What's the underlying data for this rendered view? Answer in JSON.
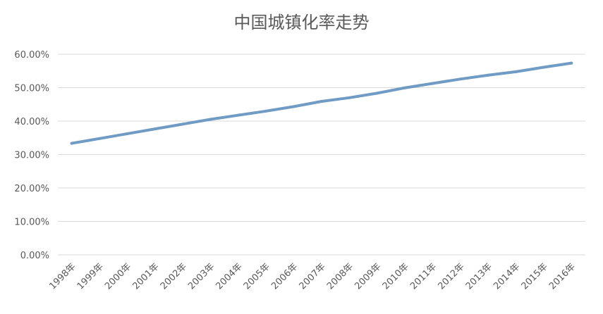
{
  "chart_data": {
    "type": "line",
    "title": "中国城镇化率走势",
    "xlabel": "",
    "ylabel": "",
    "categories": [
      "1998年",
      "1999年",
      "2000年",
      "2001年",
      "2002年",
      "2003年",
      "2004年",
      "2005年",
      "2006年",
      "2007年",
      "2008年",
      "2009年",
      "2010年",
      "2011年",
      "2012年",
      "2013年",
      "2014年",
      "2015年",
      "2016年"
    ],
    "yticks": [
      "0.00%",
      "10.00%",
      "20.00%",
      "30.00%",
      "40.00%",
      "50.00%",
      "60.00%"
    ],
    "ylim": [
      0,
      60
    ],
    "grid": true,
    "legend": "none",
    "series": [
      {
        "color": "#6f9bc4",
        "values": [
          33.35,
          34.78,
          36.22,
          37.66,
          39.09,
          40.53,
          41.76,
          42.99,
          44.34,
          45.89,
          46.99,
          48.34,
          49.95,
          51.27,
          52.57,
          53.73,
          54.77,
          56.1,
          57.35
        ]
      }
    ]
  }
}
